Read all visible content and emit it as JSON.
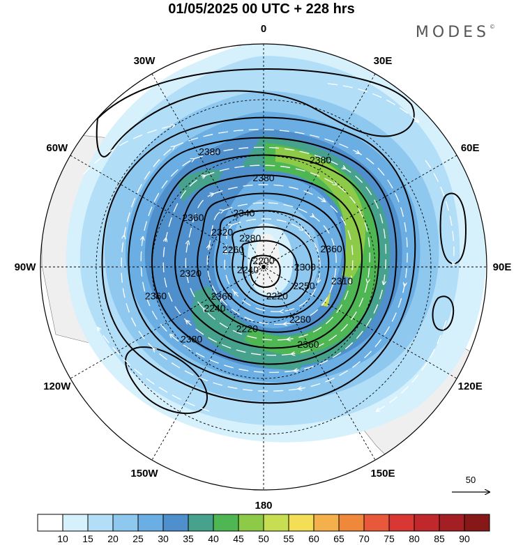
{
  "title": "01/05/2025  00 UTC  + 228 hrs",
  "brand": "MODES",
  "brand_mark": "©",
  "map": {
    "projection": "north polar stereographic",
    "pole_marker": true,
    "longitude_labels": [
      "0",
      "30E",
      "60E",
      "90E",
      "120E",
      "150E",
      "180",
      "150W",
      "120W",
      "90W",
      "60W",
      "30W"
    ],
    "longitude_values": [
      0,
      30,
      60,
      90,
      120,
      150,
      180,
      -150,
      -120,
      -90,
      -60,
      -30
    ],
    "contour_labels": [
      {
        "text": "2380",
        "lon": -25,
        "lat": 50
      },
      {
        "text": "2380",
        "lon": 0,
        "lat": 62
      },
      {
        "text": "2380",
        "lon": 28,
        "lat": 52
      },
      {
        "text": "2380",
        "lon": -135,
        "lat": 58
      },
      {
        "text": "2360",
        "lon": -55,
        "lat": 63
      },
      {
        "text": "2360",
        "lon": 75,
        "lat": 68
      },
      {
        "text": "2360",
        "lon": -105,
        "lat": 55
      },
      {
        "text": "2360",
        "lon": 150,
        "lat": 62
      },
      {
        "text": "2360",
        "lon": -125,
        "lat": 74
      },
      {
        "text": "2340",
        "lon": -20,
        "lat": 72
      },
      {
        "text": "2320",
        "lon": -50,
        "lat": 73
      },
      {
        "text": "2320",
        "lon": -95,
        "lat": 67
      },
      {
        "text": "2310",
        "lon": 100,
        "lat": 65
      },
      {
        "text": "2300",
        "lon": 90,
        "lat": 77
      },
      {
        "text": "2280",
        "lon": -25,
        "lat": 80
      },
      {
        "text": "2280",
        "lon": 145,
        "lat": 70
      },
      {
        "text": "2260",
        "lon": -60,
        "lat": 79
      },
      {
        "text": "2250",
        "lon": 115,
        "lat": 76
      },
      {
        "text": "2240",
        "lon": -130,
        "lat": 70
      },
      {
        "text": "2240",
        "lon": -100,
        "lat": 85
      },
      {
        "text": "2220",
        "lon": 155,
        "lat": 80
      },
      {
        "text": "2220",
        "lon": -165,
        "lat": 70
      },
      {
        "text": "2200",
        "lon": 0,
        "lat": 88
      }
    ]
  },
  "wind_reference": {
    "label": "50"
  },
  "colorbar": {
    "tick_labels": [
      "10",
      "15",
      "20",
      "25",
      "30",
      "35",
      "40",
      "45",
      "50",
      "55",
      "60",
      "65",
      "70",
      "75",
      "80",
      "85",
      "90"
    ],
    "colors": [
      "#ffffff",
      "#d6f1fc",
      "#b3def7",
      "#8ec8ef",
      "#6aaee4",
      "#4f90cc",
      "#46a28c",
      "#4fb654",
      "#8cca48",
      "#c7dd52",
      "#f3de55",
      "#f4b04a",
      "#f0883b",
      "#e8583a",
      "#d93733",
      "#c0282b",
      "#a31f24",
      "#861818"
    ]
  }
}
